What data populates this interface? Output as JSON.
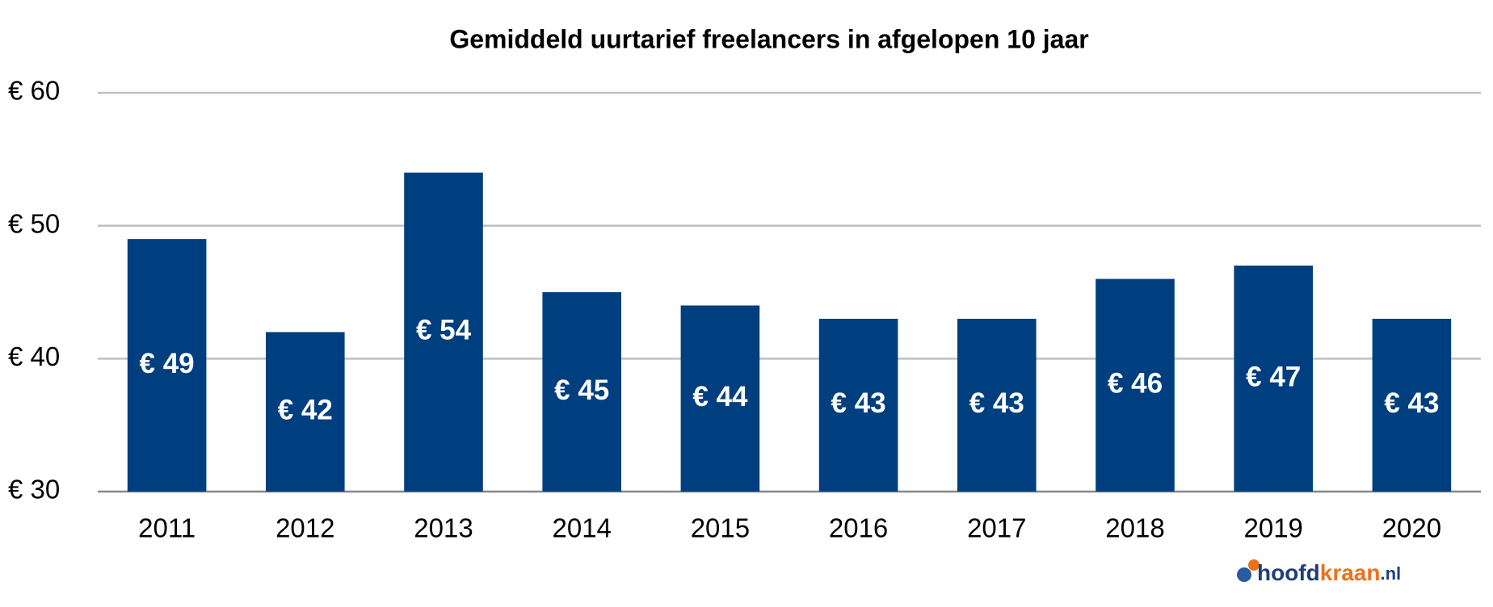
{
  "chart_data": {
    "type": "bar",
    "title": "Gemiddeld uurtarief freelancers in afgelopen 10 jaar",
    "categories": [
      "2011",
      "2012",
      "2013",
      "2014",
      "2015",
      "2016",
      "2017",
      "2018",
      "2019",
      "2020"
    ],
    "values": [
      49,
      42,
      54,
      45,
      44,
      43,
      43,
      46,
      47,
      43
    ],
    "value_labels": [
      "€ 49",
      "€ 42",
      "€ 54",
      "€ 45",
      "€ 44",
      "€ 43",
      "€ 43",
      "€ 46",
      "€ 47",
      "€ 43"
    ],
    "color": "#003f7f",
    "ylim": [
      30,
      60
    ],
    "yticks": [
      {
        "value": 30,
        "label": "€ 30"
      },
      {
        "value": 40,
        "label": "€ 40"
      },
      {
        "value": 50,
        "label": "€ 50"
      },
      {
        "value": 60,
        "label": "€ 60"
      }
    ],
    "grid": true
  },
  "watermark": [
    "hoofd",
    "kraan",
    ".nl"
  ]
}
